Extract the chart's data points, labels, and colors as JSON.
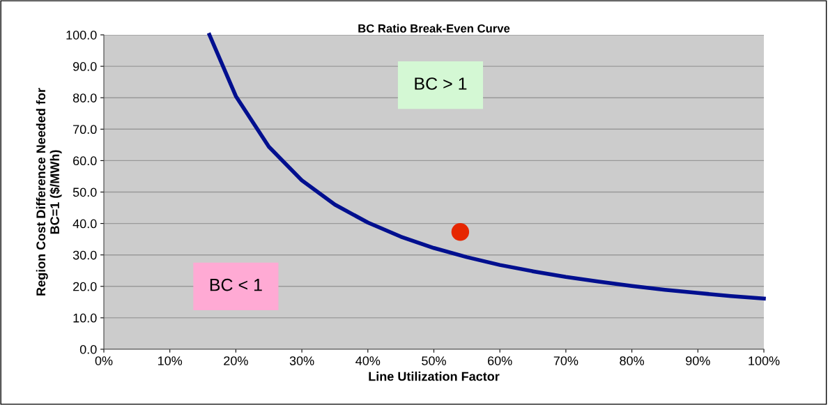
{
  "chart_data": {
    "type": "line",
    "title": "BC Ratio Break-Even Curve",
    "xlabel": "Line Utilization Factor",
    "ylabel": "Region Cost Difference Needed for\nBC=1 ($/MWh)",
    "series": [
      {
        "color": "#000f8f",
        "x": [
          16,
          20,
          25,
          30,
          35,
          40,
          45,
          50,
          55,
          60,
          65,
          70,
          75,
          80,
          85,
          90,
          95,
          100
        ],
        "values": [
          100.0,
          80.5,
          64.4,
          53.7,
          46.0,
          40.3,
          35.8,
          32.2,
          29.3,
          26.8,
          24.8,
          23.0,
          21.5,
          20.1,
          18.9,
          17.9,
          16.9,
          16.1
        ]
      },
      {
        "type": "scatter",
        "color": "#e62600",
        "marker": "circle",
        "x": [
          54
        ],
        "values": [
          37.3
        ]
      }
    ],
    "annotations": [
      "BC > 1",
      "BC < 1"
    ],
    "xlim": [
      0,
      100
    ],
    "xticks": [
      {
        "value": 0,
        "label": "0%"
      },
      {
        "value": 10,
        "label": "10%"
      },
      {
        "value": 20,
        "label": "20%"
      },
      {
        "value": 30,
        "label": "30%"
      },
      {
        "value": 40,
        "label": "40%"
      },
      {
        "value": 50,
        "label": "50%"
      },
      {
        "value": 60,
        "label": "60%"
      },
      {
        "value": 70,
        "label": "70%"
      },
      {
        "value": 80,
        "label": "80%"
      },
      {
        "value": 90,
        "label": "90%"
      },
      {
        "value": 100,
        "label": "100%"
      }
    ],
    "ylim": [
      0,
      100
    ],
    "yticks": [
      {
        "value": 0,
        "label": "0.0"
      },
      {
        "value": 10,
        "label": "10.0"
      },
      {
        "value": 20,
        "label": "20.0"
      },
      {
        "value": 30,
        "label": "30.0"
      },
      {
        "value": 40,
        "label": "40.0"
      },
      {
        "value": 50,
        "label": "50.0"
      },
      {
        "value": 60,
        "label": "60.0"
      },
      {
        "value": 70,
        "label": "70.0"
      },
      {
        "value": 80,
        "label": "80.0"
      },
      {
        "value": 90,
        "label": "90.0"
      },
      {
        "value": 100,
        "label": "100.0"
      }
    ],
    "grid": "y"
  }
}
